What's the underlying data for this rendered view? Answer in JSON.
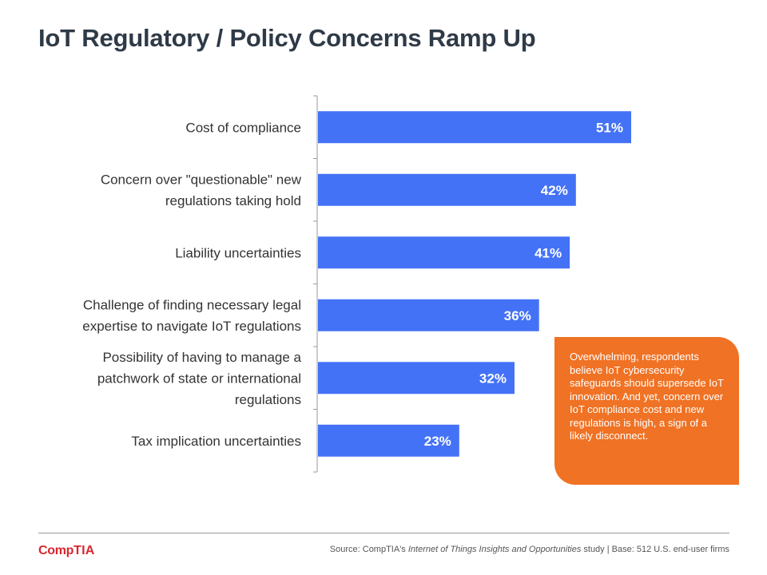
{
  "title": "IoT Regulatory / Policy Concerns Ramp Up",
  "chart_data": {
    "type": "bar",
    "orientation": "horizontal",
    "categories": [
      "Cost of compliance",
      "Concern over \"questionable\" new regulations taking hold",
      "Liability uncertainties",
      "Challenge of finding necessary legal expertise to navigate IoT regulations",
      "Possibility of having to manage a patchwork of state or international regulations",
      "Tax implication uncertainties"
    ],
    "category_lines": [
      [
        "Cost of compliance"
      ],
      [
        "Concern over \"questionable\" new",
        "regulations taking hold"
      ],
      [
        "Liability uncertainties"
      ],
      [
        "Challenge of finding necessary legal",
        "expertise to navigate IoT regulations"
      ],
      [
        "Possibility of having to manage a",
        "patchwork of state or international",
        "regulations"
      ],
      [
        "Tax implication uncertainties"
      ]
    ],
    "values": [
      51,
      42,
      41,
      36,
      32,
      23
    ],
    "data_labels": [
      "51%",
      "42%",
      "41%",
      "36%",
      "32%",
      "23%"
    ],
    "xlim": [
      0,
      60
    ],
    "unit": "%",
    "bar_color": "#4472f6",
    "grid": false
  },
  "callout": {
    "text": "Overwhelming, respondents believe IoT cybersecurity safeguards should supersede IoT innovation. And yet, concern over IoT compliance cost and new regulations is high, a sign of a likely disconnect.",
    "color": "#f07224"
  },
  "footer": {
    "logo_part1": "Comp",
    "logo_part2": "TIA",
    "source_prefix": "Source: CompTIA's ",
    "source_study": "Internet of Things Insights and Opportunities",
    "source_suffix": " study | Base: 512 U.S. end-user firms"
  }
}
